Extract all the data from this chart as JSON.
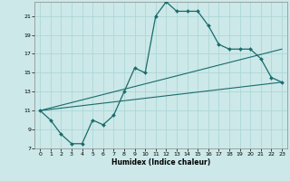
{
  "xlabel": "Humidex (Indice chaleur)",
  "background_color": "#cce8e8",
  "line_color": "#1a6b6b",
  "xlim": [
    -0.5,
    23.5
  ],
  "ylim": [
    7,
    22.5
  ],
  "yticks": [
    7,
    9,
    11,
    13,
    15,
    17,
    19,
    21
  ],
  "xticks": [
    0,
    1,
    2,
    3,
    4,
    5,
    6,
    7,
    8,
    9,
    10,
    11,
    12,
    13,
    14,
    15,
    16,
    17,
    18,
    19,
    20,
    21,
    22,
    23
  ],
  "curve1_x": [
    0,
    1,
    2,
    3,
    4,
    5,
    6,
    7,
    8,
    9,
    10,
    11,
    12,
    13,
    14,
    15,
    16,
    17,
    18,
    19,
    20,
    21,
    22,
    23
  ],
  "curve1_y": [
    11,
    10,
    8.5,
    7.5,
    7.5,
    10,
    9.5,
    10.5,
    13,
    15.5,
    15,
    21,
    22.5,
    21.5,
    21.5,
    21.5,
    20,
    18,
    17.5,
    17.5,
    17.5,
    16.5,
    14.5,
    14
  ],
  "curve2_x": [
    0,
    23
  ],
  "curve2_y": [
    11,
    17.5
  ],
  "curve3_x": [
    0,
    23
  ],
  "curve3_y": [
    11,
    14
  ]
}
